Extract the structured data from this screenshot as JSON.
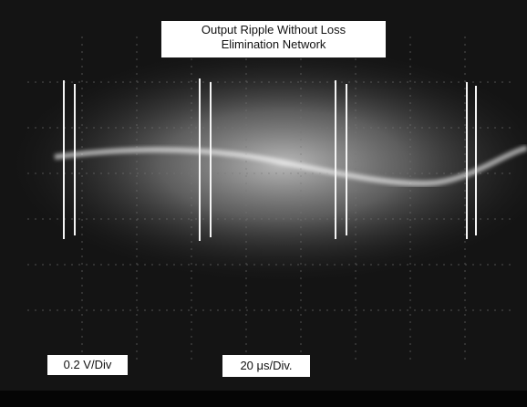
{
  "title": {
    "lines": [
      "Output Ripple Without Loss",
      "Elimination Network"
    ]
  },
  "labels": {
    "vertical_scale": "0.2 V/Div",
    "horizontal_scale": "20 μs/Div."
  }
}
